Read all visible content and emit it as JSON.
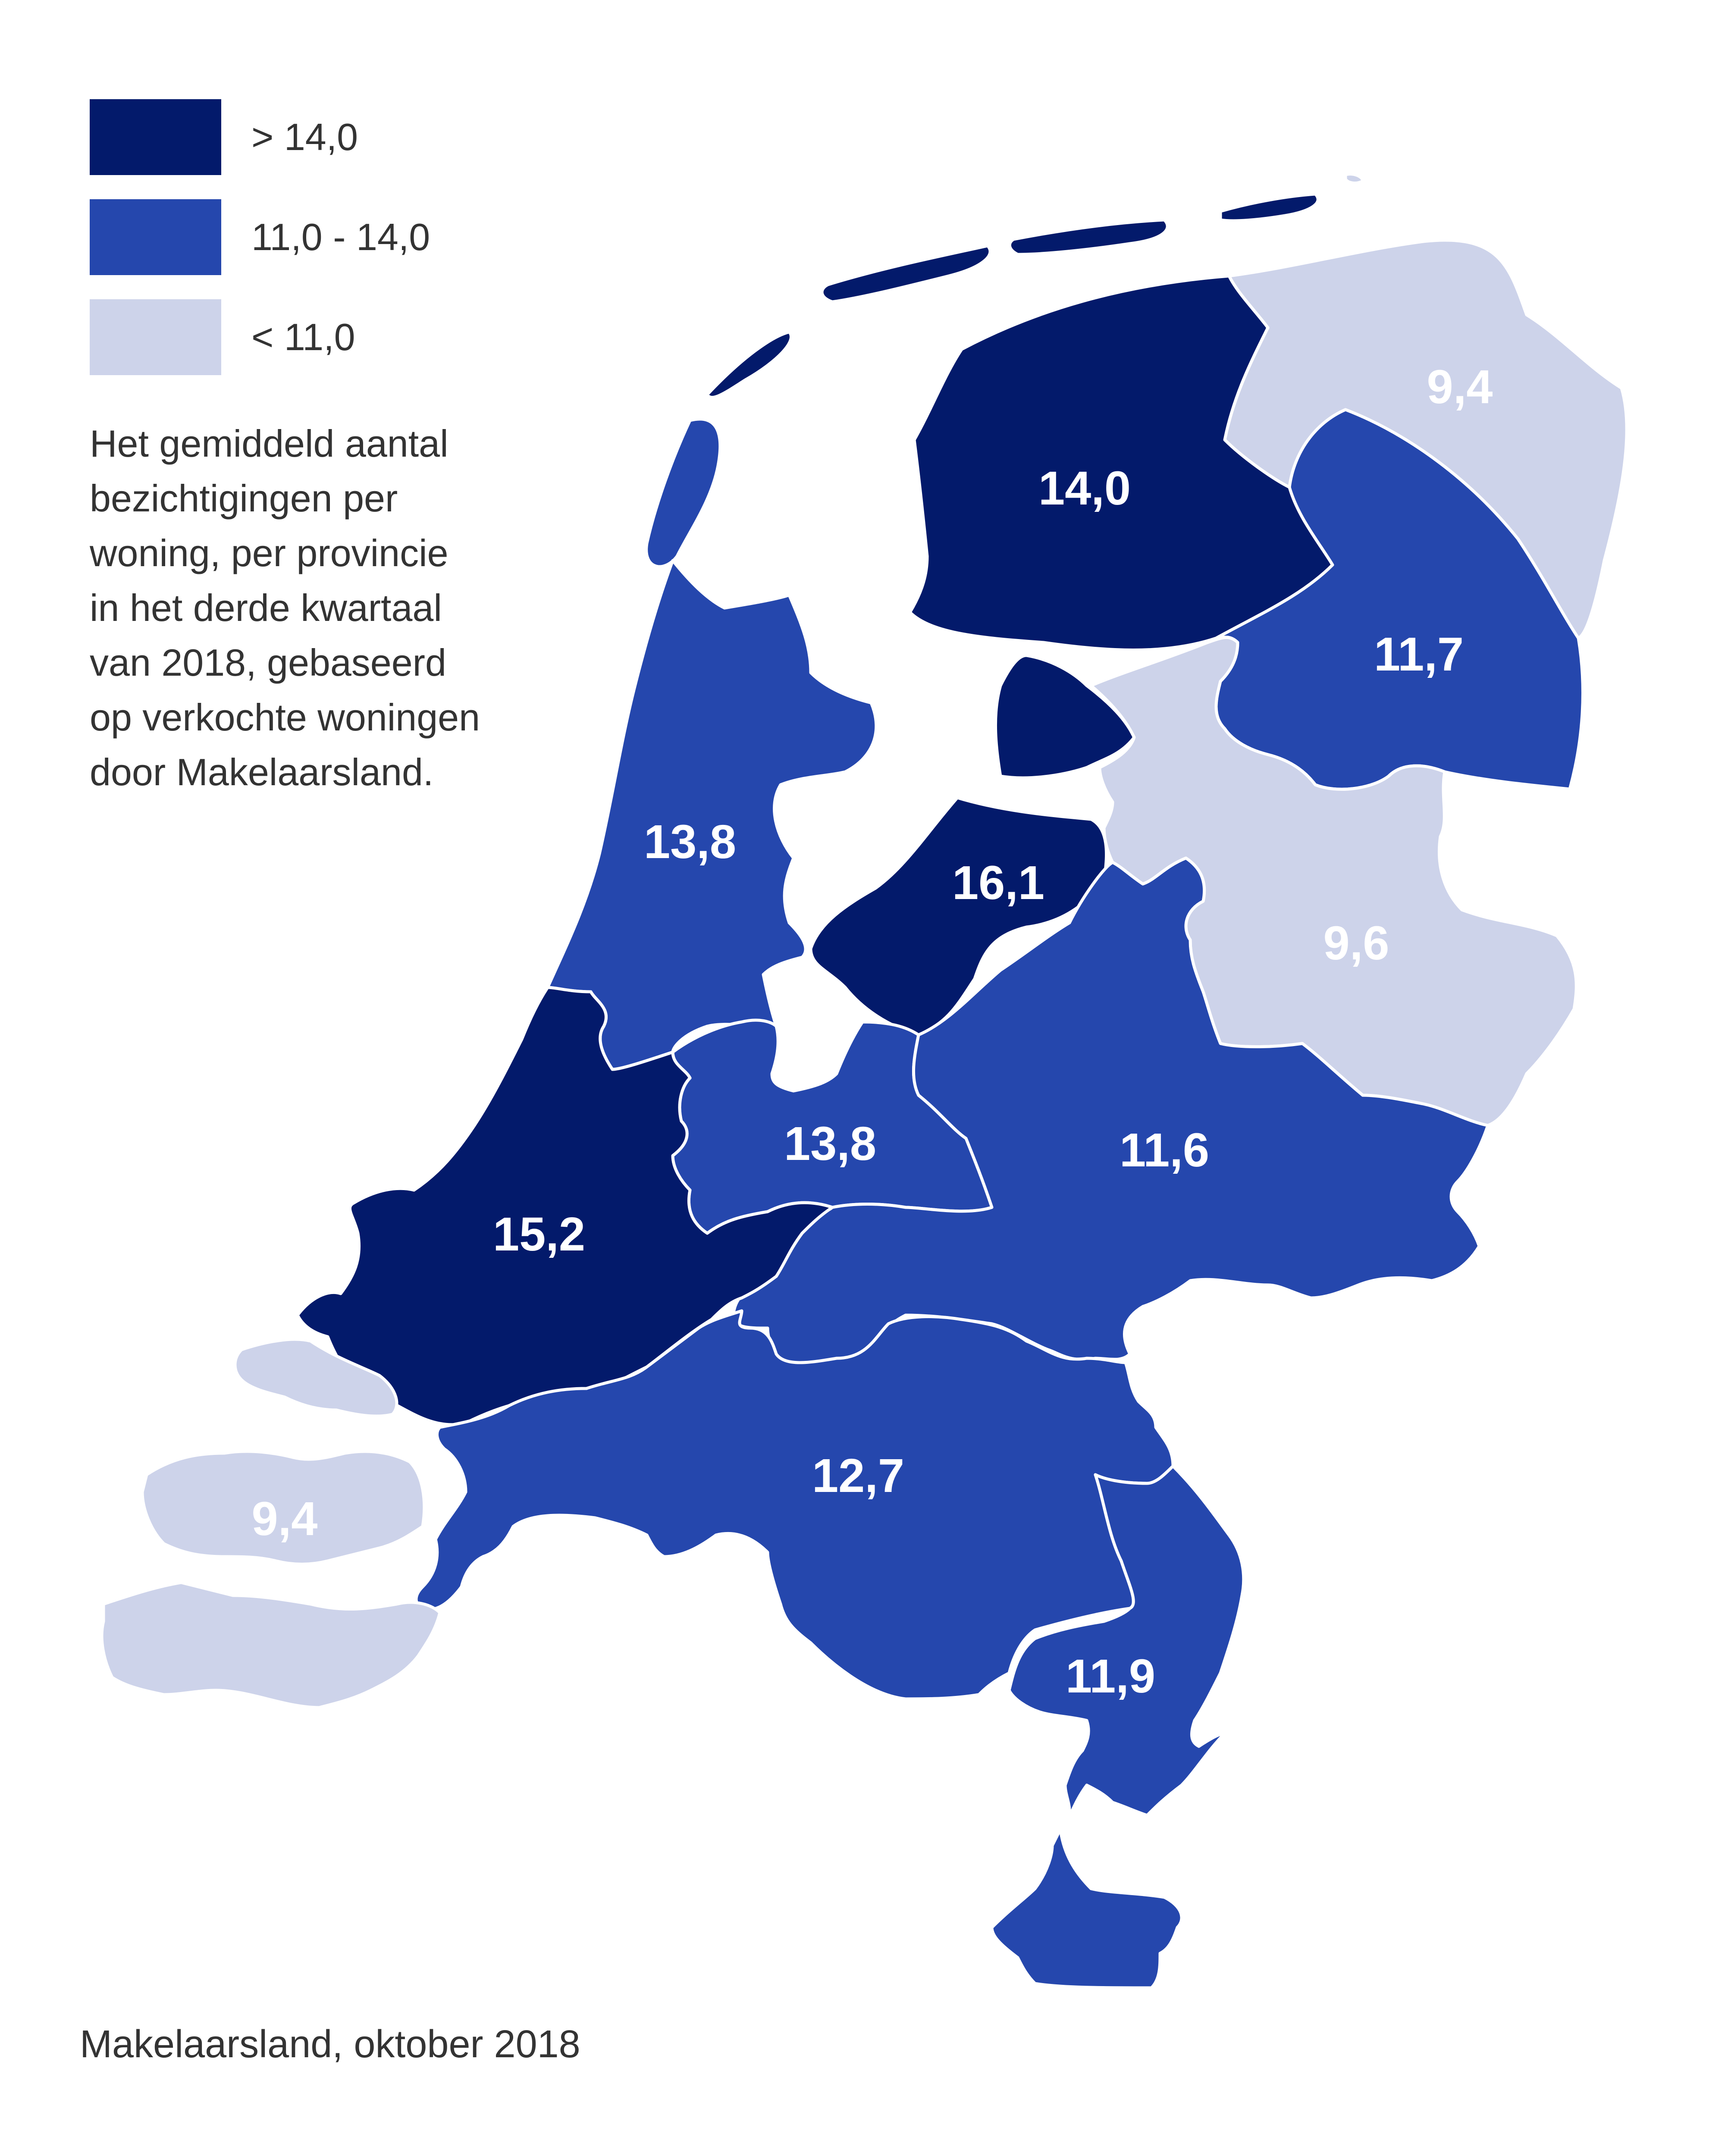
{
  "colors": {
    "high": "#031a6b",
    "mid": "#2547ad",
    "low": "#cdd3ea",
    "text": "#333333"
  },
  "legend": [
    {
      "label": "> 14,0",
      "color": "#031a6b"
    },
    {
      "label": "11,0 - 14,0",
      "color": "#2547ad"
    },
    {
      "label": "< 11,0",
      "color": "#cdd3ea"
    }
  ],
  "description": "Het gemiddeld aantal\nbezichtigingen per\nwoning, per provincie\nin het derde kwartaal\nvan 2018, gebaseerd\nop verkochte woningen\ndoor Makelaarsland.",
  "source": "Makelaarsland, oktober 2018",
  "provinces": {
    "groningen": {
      "value": "9,4",
      "class": "low"
    },
    "friesland": {
      "value": "14,0",
      "class": "high"
    },
    "drenthe": {
      "value": "11,7",
      "class": "mid"
    },
    "noord_holland": {
      "value": "13,8",
      "class": "mid"
    },
    "flevoland": {
      "value": "16,1",
      "class": "high"
    },
    "overijssel": {
      "value": "9,6",
      "class": "low"
    },
    "utrecht": {
      "value": "13,8",
      "class": "mid"
    },
    "gelderland": {
      "value": "11,6",
      "class": "mid"
    },
    "zuid_holland": {
      "value": "15,2",
      "class": "high"
    },
    "zeeland": {
      "value": "9,4",
      "class": "low"
    },
    "noord_brabant": {
      "value": "12,7",
      "class": "mid"
    },
    "limburg": {
      "value": "11,9",
      "class": "mid"
    }
  }
}
